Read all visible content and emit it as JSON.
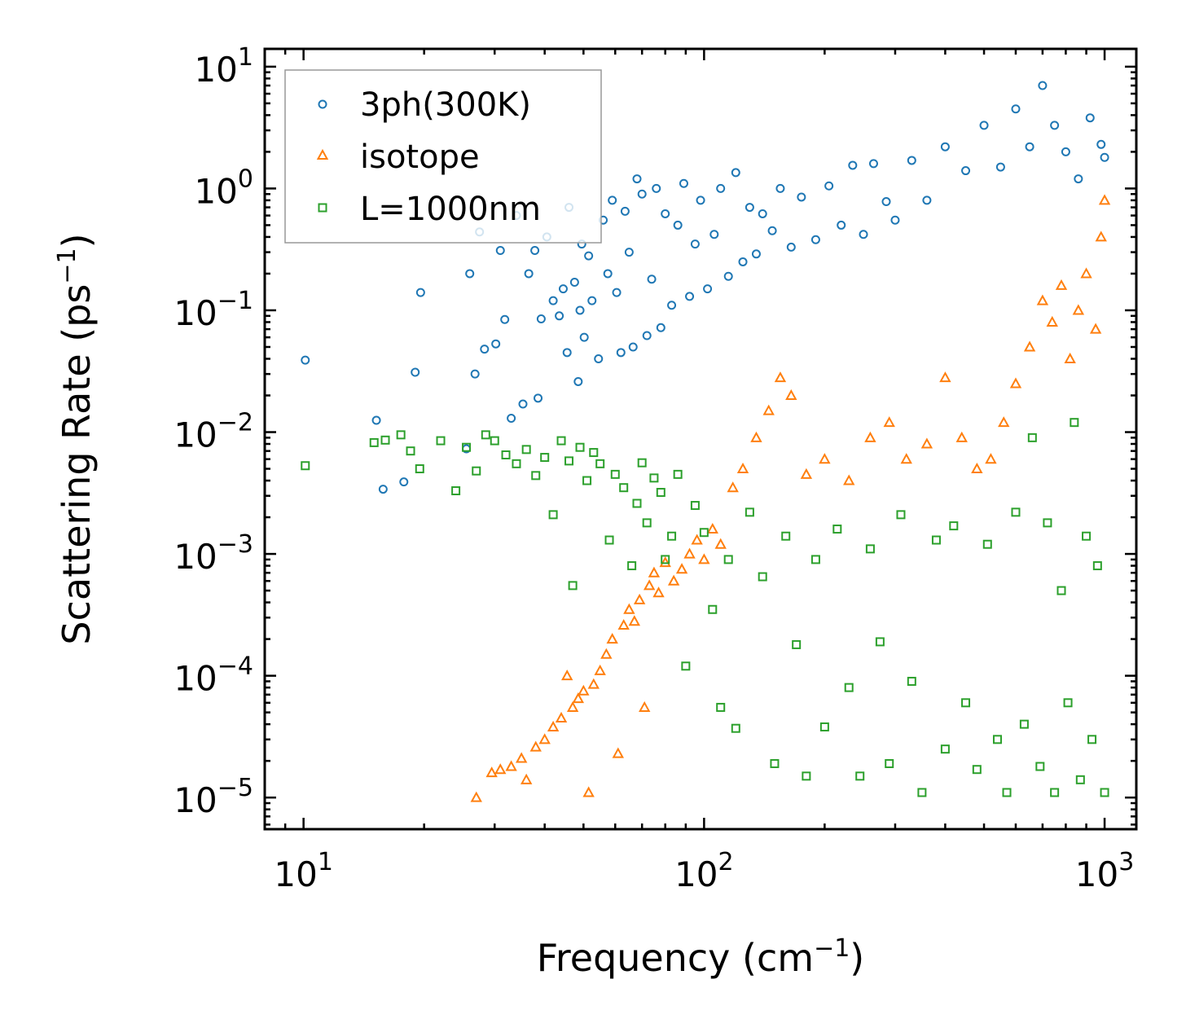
{
  "chart_data": {
    "type": "scatter",
    "xscale": "log",
    "yscale": "log",
    "xlim": [
      8,
      1200
    ],
    "ylim": [
      5.5e-06,
      14
    ],
    "xlabel": "Frequency (cm",
    "xlabel_unit_exp": "−1",
    "xlabel_close": ")",
    "ylabel": "Scattering Rate (ps",
    "ylabel_unit_exp": "−1",
    "ylabel_close": ")",
    "xticks": [
      {
        "value": 10,
        "base": "10",
        "exp": "1"
      },
      {
        "value": 100,
        "base": "10",
        "exp": "2"
      },
      {
        "value": 1000,
        "base": "10",
        "exp": "3"
      }
    ],
    "yticks": [
      {
        "value": 10,
        "base": "10",
        "exp": "1"
      },
      {
        "value": 1,
        "base": "10",
        "exp": "0"
      },
      {
        "value": 0.1,
        "base": "10",
        "exp": "−1"
      },
      {
        "value": 0.01,
        "base": "10",
        "exp": "−2"
      },
      {
        "value": 0.001,
        "base": "10",
        "exp": "−3"
      },
      {
        "value": 0.0001,
        "base": "10",
        "exp": "−4"
      },
      {
        "value": 1e-05,
        "base": "10",
        "exp": "−5"
      }
    ],
    "legend_position": "top-left",
    "series": [
      {
        "name": "3ph(300K)",
        "marker": "circle",
        "color": "#1f77b4",
        "points": [
          [
            10.1,
            0.039
          ],
          [
            15.2,
            0.0125
          ],
          [
            15.8,
            0.0034
          ],
          [
            17.8,
            0.0039
          ],
          [
            19.0,
            0.031
          ],
          [
            19.6,
            0.14
          ],
          [
            25.5,
            0.0073
          ],
          [
            26.0,
            0.2
          ],
          [
            26.8,
            0.03
          ],
          [
            27.5,
            0.44
          ],
          [
            28.3,
            0.048
          ],
          [
            30.2,
            0.053
          ],
          [
            31.0,
            0.31
          ],
          [
            31.8,
            0.084
          ],
          [
            33.0,
            0.013
          ],
          [
            34.0,
            0.6
          ],
          [
            35.3,
            0.017
          ],
          [
            36.5,
            0.2
          ],
          [
            37.8,
            0.31
          ],
          [
            38.5,
            0.019
          ],
          [
            39.2,
            0.085
          ],
          [
            40.5,
            0.4
          ],
          [
            42.0,
            0.12
          ],
          [
            43.5,
            0.09
          ],
          [
            44.5,
            0.15
          ],
          [
            45.5,
            0.045
          ],
          [
            46.0,
            0.7
          ],
          [
            47.5,
            0.17
          ],
          [
            48.5,
            0.026
          ],
          [
            49.0,
            0.1
          ],
          [
            49.5,
            0.35
          ],
          [
            50.2,
            0.06
          ],
          [
            51.5,
            0.28
          ],
          [
            52.5,
            0.12
          ],
          [
            54.5,
            0.04
          ],
          [
            56.0,
            0.55
          ],
          [
            57.5,
            0.2
          ],
          [
            59.0,
            0.8
          ],
          [
            60.5,
            0.14
          ],
          [
            62.0,
            0.045
          ],
          [
            63.5,
            0.65
          ],
          [
            65.0,
            0.3
          ],
          [
            66.5,
            0.05
          ],
          [
            68.0,
            1.2
          ],
          [
            70.0,
            0.9
          ],
          [
            72.0,
            0.062
          ],
          [
            74.0,
            0.18
          ],
          [
            76.0,
            1.0
          ],
          [
            78.0,
            0.072
          ],
          [
            80.0,
            0.62
          ],
          [
            83.0,
            0.11
          ],
          [
            86.0,
            0.5
          ],
          [
            89.0,
            1.1
          ],
          [
            92.0,
            0.13
          ],
          [
            95.0,
            0.35
          ],
          [
            98.0,
            0.8
          ],
          [
            102.0,
            0.15
          ],
          [
            106.0,
            0.42
          ],
          [
            110.0,
            1.0
          ],
          [
            115.0,
            0.19
          ],
          [
            120.0,
            1.35
          ],
          [
            125.0,
            0.25
          ],
          [
            130.0,
            0.7
          ],
          [
            135.0,
            0.29
          ],
          [
            140.0,
            0.62
          ],
          [
            148.0,
            0.45
          ],
          [
            155.0,
            1.0
          ],
          [
            165.0,
            0.33
          ],
          [
            175.0,
            0.85
          ],
          [
            190.0,
            0.38
          ],
          [
            205.0,
            1.05
          ],
          [
            220.0,
            0.5
          ],
          [
            235.0,
            1.55
          ],
          [
            250.0,
            0.42
          ],
          [
            265.0,
            1.6
          ],
          [
            285.0,
            0.78
          ],
          [
            300.0,
            0.55
          ],
          [
            330.0,
            1.7
          ],
          [
            360.0,
            0.8
          ],
          [
            400.0,
            2.2
          ],
          [
            450.0,
            1.4
          ],
          [
            500.0,
            3.3
          ],
          [
            550.0,
            1.5
          ],
          [
            600.0,
            4.5
          ],
          [
            650.0,
            2.2
          ],
          [
            700.0,
            7.0
          ],
          [
            750.0,
            3.3
          ],
          [
            800.0,
            2.0
          ],
          [
            860.0,
            1.2
          ],
          [
            920.0,
            3.8
          ],
          [
            980.0,
            2.3
          ],
          [
            1000.0,
            1.8
          ]
        ]
      },
      {
        "name": "isotope",
        "marker": "triangle",
        "color": "#ff7f0e",
        "points": [
          [
            27.0,
            1e-05
          ],
          [
            29.5,
            1.6e-05
          ],
          [
            31.0,
            1.7e-05
          ],
          [
            33.0,
            1.8e-05
          ],
          [
            35.0,
            2.1e-05
          ],
          [
            36.0,
            1.4e-05
          ],
          [
            38.0,
            2.6e-05
          ],
          [
            40.0,
            3e-05
          ],
          [
            42.0,
            3.8e-05
          ],
          [
            44.0,
            4.5e-05
          ],
          [
            45.5,
            0.0001
          ],
          [
            47.0,
            5.5e-05
          ],
          [
            48.5,
            6.5e-05
          ],
          [
            50.0,
            7.5e-05
          ],
          [
            51.5,
            1.1e-05
          ],
          [
            53.0,
            8.5e-05
          ],
          [
            55.0,
            0.00011
          ],
          [
            57.0,
            0.00015
          ],
          [
            59.0,
            0.0002
          ],
          [
            61.0,
            2.3e-05
          ],
          [
            63.0,
            0.00026
          ],
          [
            65.0,
            0.00035
          ],
          [
            67.0,
            0.00028
          ],
          [
            69.0,
            0.00042
          ],
          [
            71.0,
            5.5e-05
          ],
          [
            73.0,
            0.00055
          ],
          [
            75.0,
            0.0007
          ],
          [
            77.0,
            0.00048
          ],
          [
            80.0,
            0.00085
          ],
          [
            84.0,
            0.0006
          ],
          [
            88.0,
            0.00075
          ],
          [
            92.0,
            0.001
          ],
          [
            96.0,
            0.0013
          ],
          [
            100.0,
            0.0009
          ],
          [
            105.0,
            0.0016
          ],
          [
            110.0,
            0.0012
          ],
          [
            118.0,
            0.0035
          ],
          [
            125.0,
            0.005
          ],
          [
            135.0,
            0.009
          ],
          [
            145.0,
            0.015
          ],
          [
            155.0,
            0.028
          ],
          [
            165.0,
            0.02
          ],
          [
            180.0,
            0.0045
          ],
          [
            200.0,
            0.006
          ],
          [
            230.0,
            0.004
          ],
          [
            260.0,
            0.009
          ],
          [
            290.0,
            0.012
          ],
          [
            320.0,
            0.006
          ],
          [
            360.0,
            0.008
          ],
          [
            400.0,
            0.028
          ],
          [
            440.0,
            0.009
          ],
          [
            480.0,
            0.005
          ],
          [
            520.0,
            0.006
          ],
          [
            560.0,
            0.012
          ],
          [
            600.0,
            0.025
          ],
          [
            650.0,
            0.05
          ],
          [
            700.0,
            0.12
          ],
          [
            740.0,
            0.08
          ],
          [
            780.0,
            0.16
          ],
          [
            820.0,
            0.04
          ],
          [
            860.0,
            0.1
          ],
          [
            900.0,
            0.2
          ],
          [
            950.0,
            0.07
          ],
          [
            980.0,
            0.4
          ],
          [
            1000.0,
            0.8
          ]
        ]
      },
      {
        "name": "L=1000nm",
        "marker": "square",
        "color": "#2ca02c",
        "points": [
          [
            10.1,
            0.0053
          ],
          [
            15.0,
            0.0082
          ],
          [
            16.0,
            0.0086
          ],
          [
            17.5,
            0.0095
          ],
          [
            18.5,
            0.007
          ],
          [
            19.5,
            0.005
          ],
          [
            22.0,
            0.0085
          ],
          [
            24.0,
            0.0033
          ],
          [
            25.5,
            0.0075
          ],
          [
            27.0,
            0.0048
          ],
          [
            28.5,
            0.0095
          ],
          [
            30.0,
            0.0085
          ],
          [
            32.0,
            0.0065
          ],
          [
            34.0,
            0.0055
          ],
          [
            36.0,
            0.0072
          ],
          [
            38.0,
            0.0044
          ],
          [
            40.0,
            0.0062
          ],
          [
            42.0,
            0.0021
          ],
          [
            44.0,
            0.0085
          ],
          [
            46.0,
            0.0058
          ],
          [
            47.0,
            0.00055
          ],
          [
            49.0,
            0.0075
          ],
          [
            51.0,
            0.004
          ],
          [
            53.0,
            0.0068
          ],
          [
            55.0,
            0.0055
          ],
          [
            58.0,
            0.0013
          ],
          [
            60.0,
            0.0045
          ],
          [
            63.0,
            0.0035
          ],
          [
            66.0,
            0.0008
          ],
          [
            68.0,
            0.0026
          ],
          [
            70.0,
            0.0056
          ],
          [
            72.0,
            0.0018
          ],
          [
            75.0,
            0.0042
          ],
          [
            78.0,
            0.0032
          ],
          [
            80.0,
            0.0009
          ],
          [
            83.0,
            0.0014
          ],
          [
            86.0,
            0.0045
          ],
          [
            90.0,
            0.00012
          ],
          [
            95.0,
            0.0025
          ],
          [
            100.0,
            0.0015
          ],
          [
            105.0,
            0.00035
          ],
          [
            110.0,
            5.5e-05
          ],
          [
            115.0,
            0.0009
          ],
          [
            120.0,
            3.7e-05
          ],
          [
            130.0,
            0.0022
          ],
          [
            140.0,
            0.00065
          ],
          [
            150.0,
            1.9e-05
          ],
          [
            160.0,
            0.0014
          ],
          [
            170.0,
            0.00018
          ],
          [
            180.0,
            1.5e-05
          ],
          [
            190.0,
            0.0009
          ],
          [
            200.0,
            3.8e-05
          ],
          [
            215.0,
            0.0016
          ],
          [
            230.0,
            8e-05
          ],
          [
            245.0,
            1.5e-05
          ],
          [
            260.0,
            0.0011
          ],
          [
            275.0,
            0.00019
          ],
          [
            290.0,
            1.9e-05
          ],
          [
            310.0,
            0.0021
          ],
          [
            330.0,
            9e-05
          ],
          [
            350.0,
            1.1e-05
          ],
          [
            380.0,
            0.0013
          ],
          [
            400.0,
            2.5e-05
          ],
          [
            420.0,
            0.0017
          ],
          [
            450.0,
            6e-05
          ],
          [
            480.0,
            1.7e-05
          ],
          [
            510.0,
            0.0012
          ],
          [
            540.0,
            3e-05
          ],
          [
            570.0,
            1.1e-05
          ],
          [
            600.0,
            0.0022
          ],
          [
            630.0,
            4e-05
          ],
          [
            660.0,
            0.009
          ],
          [
            690.0,
            1.8e-05
          ],
          [
            720.0,
            0.0018
          ],
          [
            750.0,
            1.1e-05
          ],
          [
            780.0,
            0.0005
          ],
          [
            810.0,
            6e-05
          ],
          [
            840.0,
            0.012
          ],
          [
            870.0,
            1.4e-05
          ],
          [
            900.0,
            0.0014
          ],
          [
            930.0,
            3e-05
          ],
          [
            960.0,
            0.0008
          ],
          [
            1000.0,
            1.1e-05
          ]
        ]
      }
    ]
  }
}
